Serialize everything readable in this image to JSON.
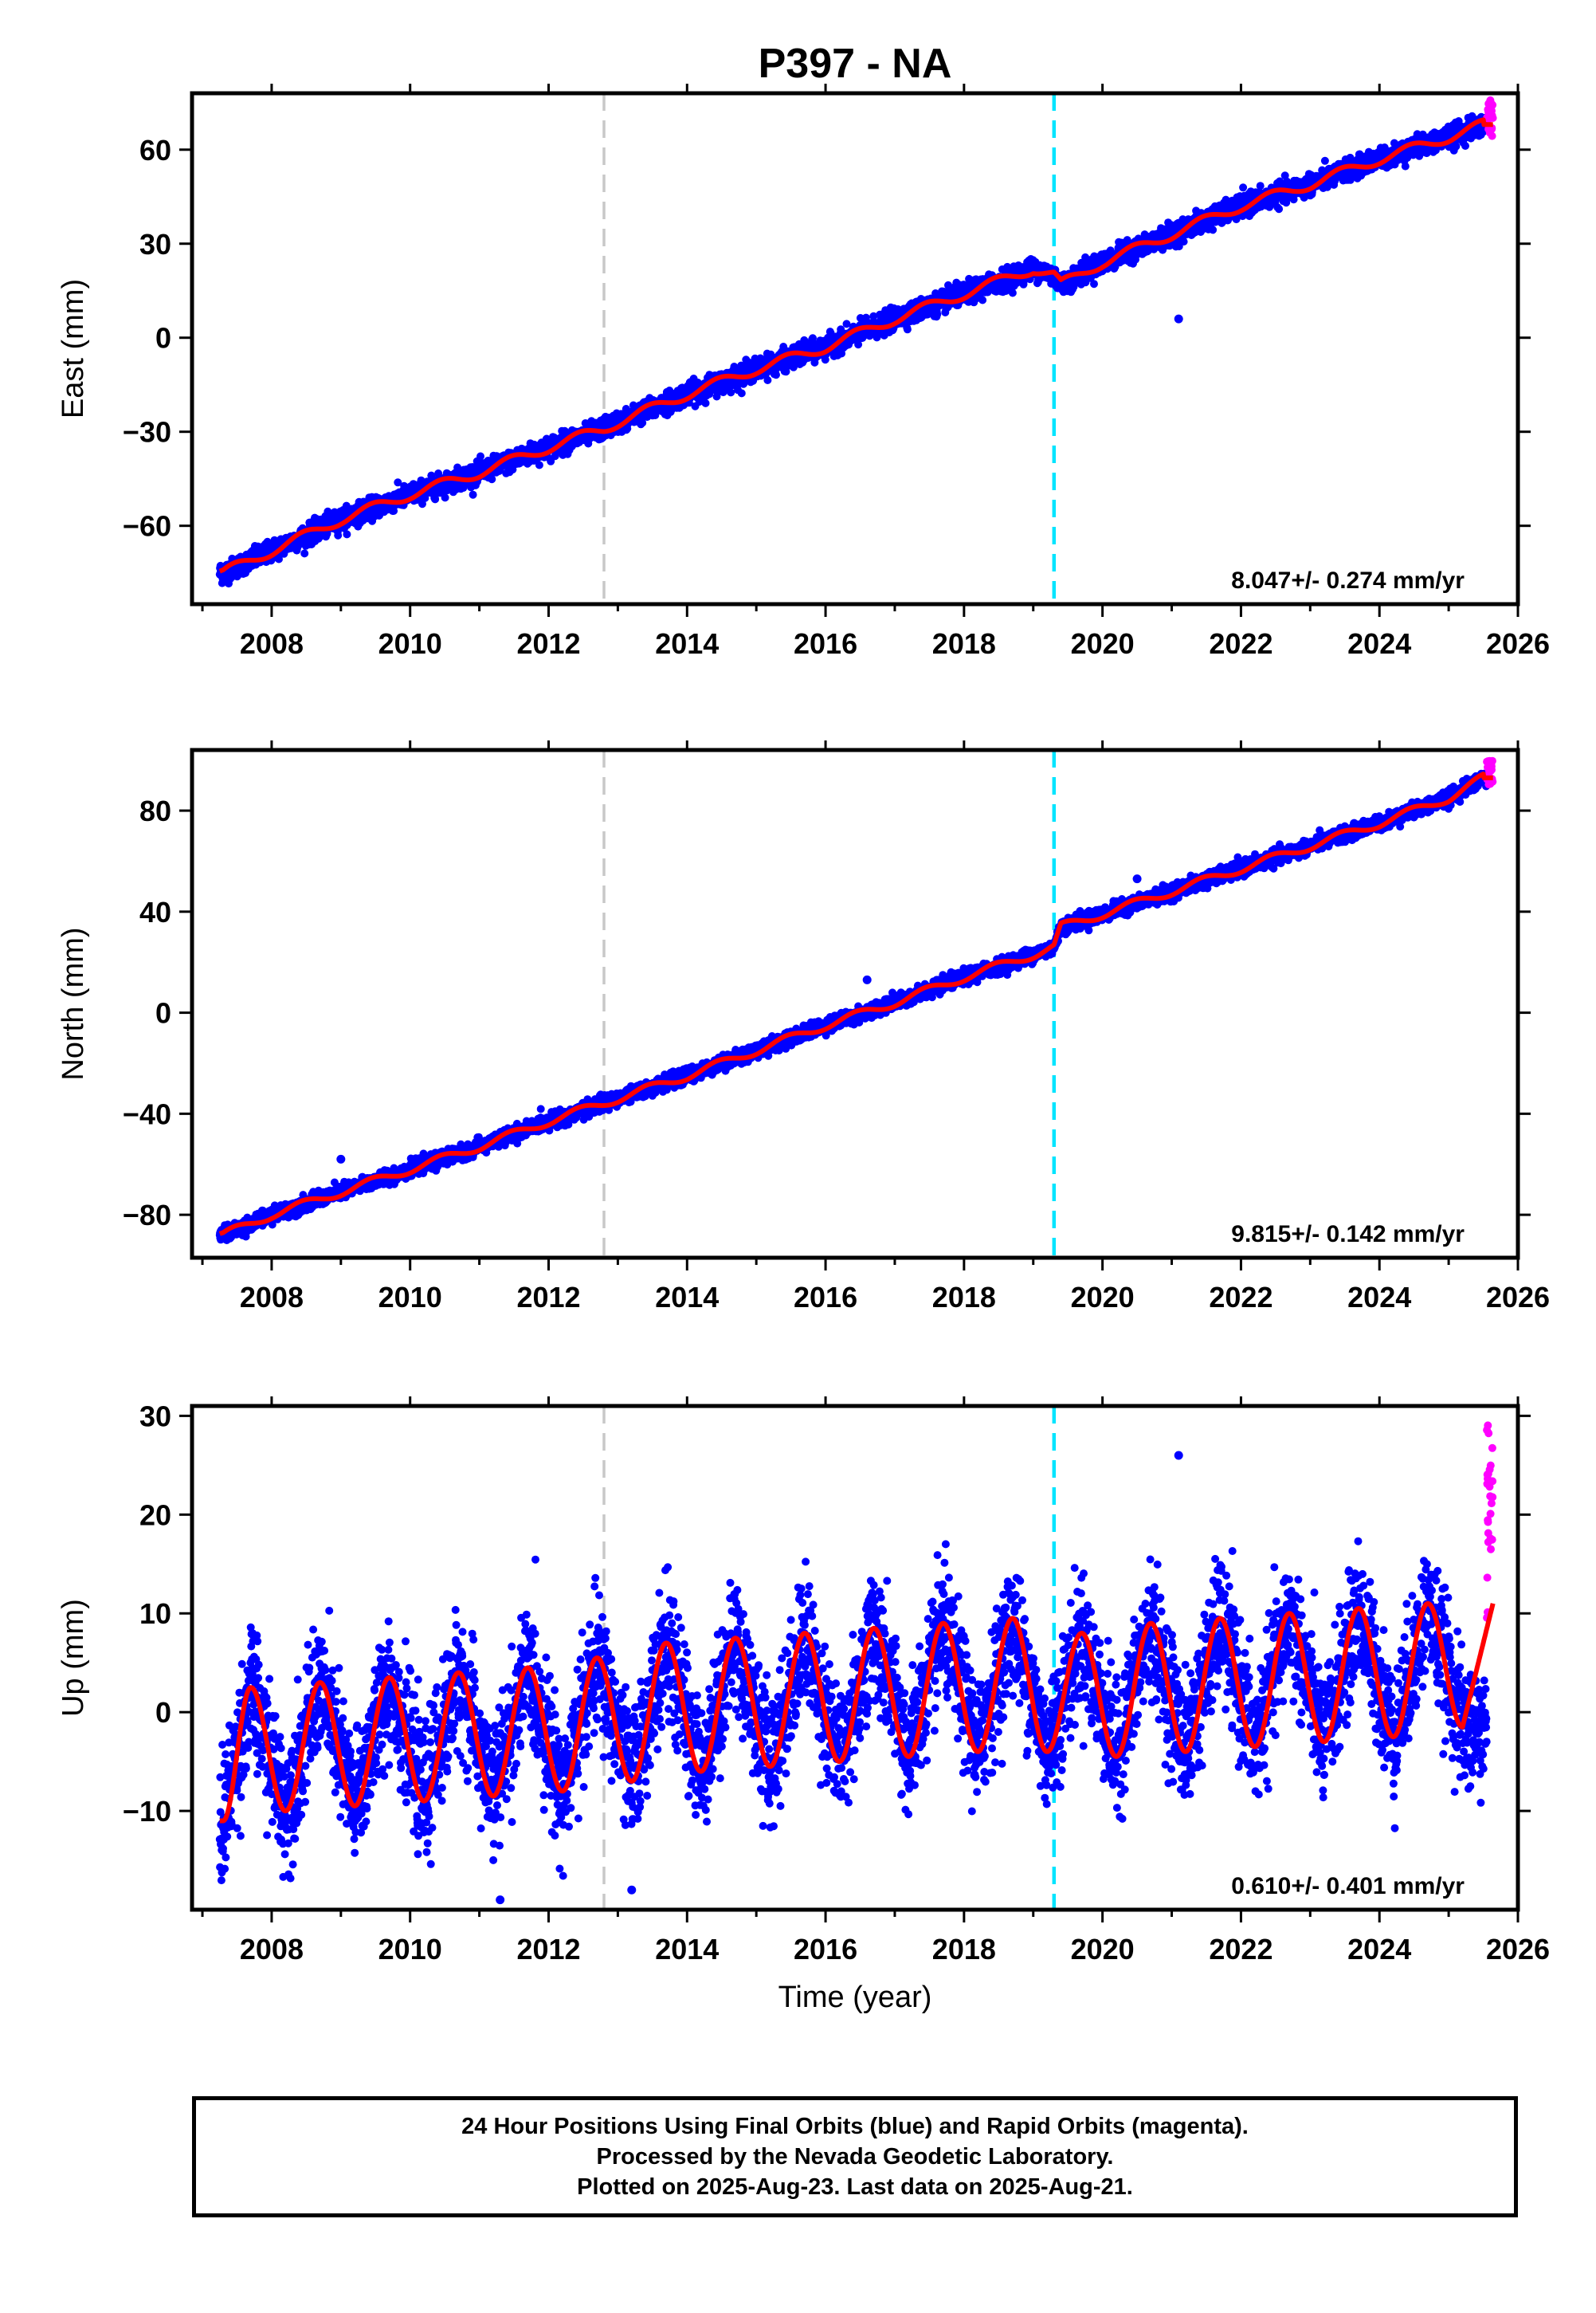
{
  "title": "P397 - NA",
  "xlabel": "Time (year)",
  "colors": {
    "final": "#0000ff",
    "rapid": "#ff00ff",
    "model": "#ff0000",
    "line_gray": "#c8c8c8",
    "line_cyan": "#00e5ff"
  },
  "caption": [
    "24 Hour Positions Using Final Orbits (blue) and Rapid Orbits (magenta).",
    "Processed by the Nevada Geodetic Laboratory.",
    "Plotted on 2025-Aug-23. Last data on 2025-Aug-21."
  ],
  "chart_data": [
    {
      "type": "scatter",
      "panel": "east",
      "ylabel": "East (mm)",
      "xlim": [
        2006.85,
        2026.0
      ],
      "ylim": [
        -85,
        78
      ],
      "xticks": [
        2008,
        2010,
        2012,
        2014,
        2016,
        2018,
        2020,
        2022,
        2024,
        2026
      ],
      "yticks": [
        -60,
        -30,
        0,
        30,
        60
      ],
      "ytick_labels": [
        "−60",
        "−30",
        "0",
        "30",
        "60"
      ],
      "rate_label": "8.047+/- 0.274 mm/yr",
      "rate_mm_per_yr": 8.047,
      "vertical_lines": [
        {
          "x": 2012.8,
          "color": "gray"
        },
        {
          "x": 2019.3,
          "color": "cyan"
        }
      ],
      "data_start": 2007.25,
      "data_end": 2025.64,
      "rapid_start": 2025.55,
      "series": [
        {
          "name": "Final Orbits",
          "color": "blue",
          "x": [
            2007.3,
            2008.0,
            2009.0,
            2010.0,
            2011.0,
            2012.0,
            2012.8,
            2013.0,
            2014.0,
            2015.0,
            2016.0,
            2017.0,
            2018.0,
            2019.0,
            2019.3,
            2019.4,
            2020.0,
            2021.0,
            2022.0,
            2023.0,
            2024.0,
            2025.0,
            2025.5
          ],
          "y": [
            -75,
            -68,
            -58,
            -50,
            -43,
            -35,
            -29,
            -27,
            -18,
            -10,
            -3,
            6,
            14,
            22,
            20,
            17,
            24,
            33,
            42,
            49,
            57,
            64,
            68
          ]
        },
        {
          "name": "Rapid Orbits",
          "color": "magenta",
          "x": [
            2025.6
          ],
          "y": [
            70
          ]
        }
      ],
      "outliers": [
        {
          "x": 2021.1,
          "y": 6
        }
      ]
    },
    {
      "type": "scatter",
      "panel": "north",
      "ylabel": "North (mm)",
      "xlim": [
        2006.85,
        2026.0
      ],
      "ylim": [
        -97,
        104
      ],
      "xticks": [
        2008,
        2010,
        2012,
        2014,
        2016,
        2018,
        2020,
        2022,
        2024,
        2026
      ],
      "yticks": [
        -80,
        -40,
        0,
        40,
        80
      ],
      "ytick_labels": [
        "−80",
        "−40",
        "0",
        "40",
        "80"
      ],
      "rate_label": "9.815+/- 0.142 mm/yr",
      "rate_mm_per_yr": 9.815,
      "vertical_lines": [
        {
          "x": 2012.8,
          "color": "gray"
        },
        {
          "x": 2019.3,
          "color": "cyan"
        }
      ],
      "data_start": 2007.25,
      "data_end": 2025.64,
      "rapid_start": 2025.55,
      "series": [
        {
          "name": "Final Orbits",
          "color": "blue",
          "x": [
            2007.3,
            2008.0,
            2009.0,
            2010.0,
            2011.0,
            2012.0,
            2013.0,
            2014.0,
            2015.0,
            2016.0,
            2017.0,
            2018.0,
            2019.0,
            2019.3,
            2019.4,
            2020.0,
            2021.0,
            2022.0,
            2023.0,
            2024.0,
            2025.0,
            2025.5
          ],
          "y": [
            -88,
            -80,
            -71,
            -62,
            -53,
            -43,
            -34,
            -25,
            -15,
            -5,
            4,
            14,
            23,
            26,
            34,
            39,
            48,
            57,
            66,
            75,
            85,
            93
          ]
        },
        {
          "name": "Rapid Orbits",
          "color": "magenta",
          "x": [
            2025.6
          ],
          "y": [
            95
          ]
        }
      ],
      "outliers": [
        {
          "x": 2009.0,
          "y": -58
        },
        {
          "x": 2016.6,
          "y": 13
        },
        {
          "x": 2020.5,
          "y": 53
        }
      ]
    },
    {
      "type": "scatter",
      "panel": "up",
      "ylabel": "Up (mm)",
      "xlim": [
        2006.85,
        2026.0
      ],
      "ylim": [
        -20,
        31
      ],
      "xticks": [
        2008,
        2010,
        2012,
        2014,
        2016,
        2018,
        2020,
        2022,
        2024,
        2026
      ],
      "yticks": [
        -10,
        0,
        10,
        20,
        30
      ],
      "ytick_labels": [
        "−10",
        "0",
        "10",
        "20",
        "30"
      ],
      "rate_label": "0.610+/- 0.401 mm/yr",
      "rate_mm_per_yr": 0.61,
      "vertical_lines": [
        {
          "x": 2012.8,
          "color": "gray"
        },
        {
          "x": 2019.3,
          "color": "cyan"
        }
      ],
      "data_start": 2007.25,
      "data_end": 2025.64,
      "rapid_start": 2025.55,
      "series": [
        {
          "name": "Final Orbits",
          "color": "blue",
          "x": [
            2007.3,
            2007.7,
            2008.2,
            2008.7,
            2009.2,
            2009.7,
            2010.2,
            2010.7,
            2011.2,
            2011.7,
            2012.2,
            2012.7,
            2013.2,
            2013.7,
            2014.2,
            2014.7,
            2015.2,
            2015.7,
            2016.2,
            2016.7,
            2017.2,
            2017.7,
            2018.2,
            2018.7,
            2019.2,
            2019.7,
            2020.2,
            2020.7,
            2021.2,
            2021.7,
            2022.2,
            2022.7,
            2023.2,
            2023.7,
            2024.2,
            2024.7,
            2025.2
          ],
          "y": [
            -11,
            2.5,
            -10,
            3,
            -9.5,
            3.5,
            -9,
            4,
            -8.5,
            4.5,
            -8,
            5.5,
            -7,
            7,
            -6,
            7.5,
            -5.5,
            8,
            -5,
            8.5,
            -4.5,
            9,
            -4,
            9.5,
            -4,
            8,
            -4.5,
            9,
            -4,
            9.5,
            -3.5,
            10,
            -3,
            10.5,
            -2.5,
            11,
            -1.5
          ]
        },
        {
          "name": "Rapid Orbits",
          "color": "magenta",
          "x": [
            2025.6
          ],
          "y": [
            18
          ]
        }
      ],
      "outliers": [
        {
          "x": 2021.1,
          "y": 26
        },
        {
          "x": 2013.2,
          "y": -18
        },
        {
          "x": 2011.3,
          "y": -19
        }
      ]
    }
  ]
}
